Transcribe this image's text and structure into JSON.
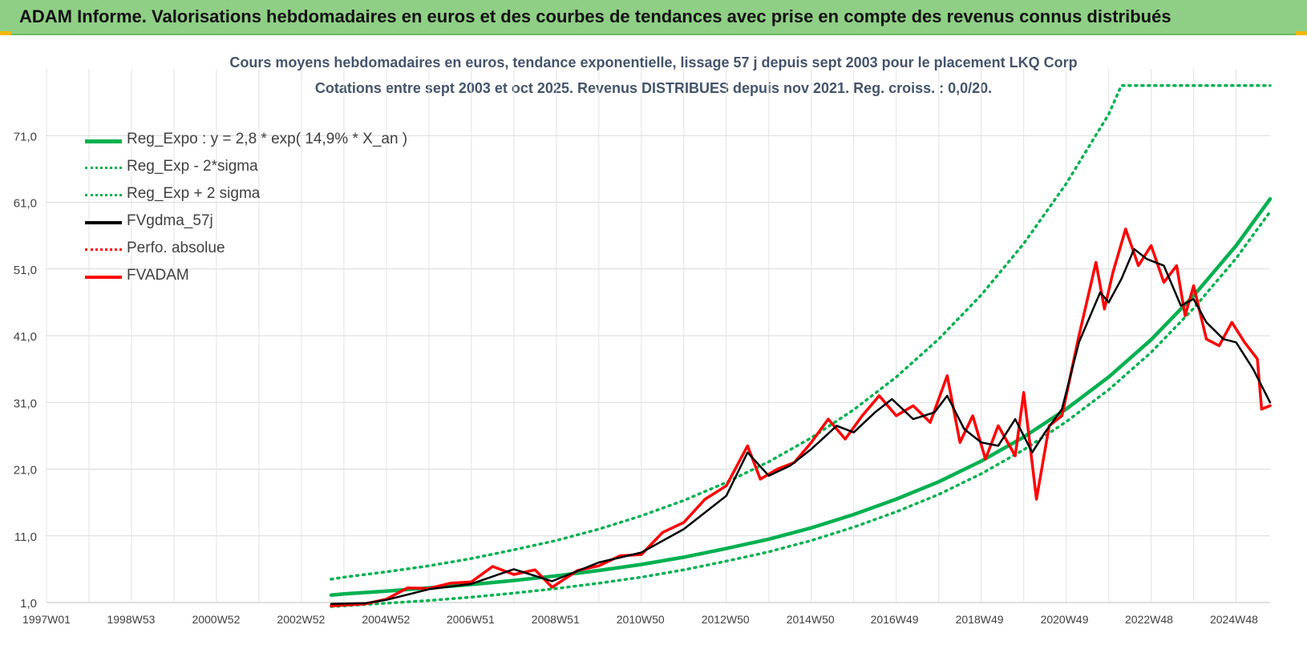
{
  "header": {
    "title": "ADAM Informe. Valorisations hebdomadaires en euros et des courbes de tendances avec prise en compte des revenus connus distribués"
  },
  "colors": {
    "header_bg": "#8fcf85",
    "regression": "#00b050",
    "smoothed": "#000000",
    "fvadam": "#ff0000",
    "text": "#44546a"
  },
  "chart_data": {
    "type": "line",
    "title_line1": "Cours moyens hebdomadaires en euros, tendance exponentielle, lissage 57 j depuis sept 2003 pour le placement LKQ Corp",
    "title_line2": "Cotations entre sept 2003 et oct 2025. Revenus DISTRIBUES depuis nov 2021. Reg. croiss. : 0,0/20.",
    "x_tick_labels": [
      "1997W01",
      "1998W53",
      "2000W52",
      "2002W52",
      "2004W52",
      "2006W51",
      "2008W51",
      "2010W50",
      "2012W50",
      "2014W50",
      "2016W49",
      "2018W49",
      "2020W49",
      "2022W48",
      "2024W48"
    ],
    "y_tick_labels": [
      "1,0",
      "11,0",
      "21,0",
      "31,0",
      "41,0",
      "51,0",
      "61,0",
      "71,0"
    ],
    "ylim": [
      1,
      81
    ],
    "xlim": [
      1997.0,
      2025.8
    ],
    "grid": true,
    "legend_position": "top-left",
    "series": [
      {
        "name": "Reg_Expo : y = 2,8 * exp( 14,9% *  X_an )",
        "style": "solid",
        "color": "#00b050",
        "points": [
          [
            2003.7,
            2.1
          ],
          [
            2004.0,
            2.3
          ],
          [
            2005.0,
            2.7
          ],
          [
            2006.0,
            3.2
          ],
          [
            2007.0,
            3.7
          ],
          [
            2008.0,
            4.3
          ],
          [
            2009.0,
            5.0
          ],
          [
            2010.0,
            5.8
          ],
          [
            2011.0,
            6.7
          ],
          [
            2012.0,
            7.8
          ],
          [
            2013.0,
            9.1
          ],
          [
            2014.0,
            10.5
          ],
          [
            2015.0,
            12.2
          ],
          [
            2016.0,
            14.2
          ],
          [
            2017.0,
            16.5
          ],
          [
            2018.0,
            19.1
          ],
          [
            2019.0,
            22.2
          ],
          [
            2020.0,
            25.8
          ],
          [
            2021.0,
            30.0
          ],
          [
            2022.0,
            34.8
          ],
          [
            2023.0,
            40.4
          ],
          [
            2024.0,
            47.0
          ],
          [
            2025.0,
            54.5
          ],
          [
            2025.8,
            61.5
          ]
        ]
      },
      {
        "name": "Reg_Exp - 2*sigma",
        "style": "dotted",
        "color": "#00b050",
        "points": [
          [
            2003.7,
            0.4
          ],
          [
            2004.0,
            0.5
          ],
          [
            2005.0,
            0.9
          ],
          [
            2006.0,
            1.3
          ],
          [
            2007.0,
            1.8
          ],
          [
            2008.0,
            2.4
          ],
          [
            2009.0,
            3.1
          ],
          [
            2010.0,
            3.9
          ],
          [
            2011.0,
            4.8
          ],
          [
            2012.0,
            5.9
          ],
          [
            2013.0,
            7.2
          ],
          [
            2014.0,
            8.6
          ],
          [
            2015.0,
            10.3
          ],
          [
            2016.0,
            12.3
          ],
          [
            2017.0,
            14.6
          ],
          [
            2018.0,
            17.2
          ],
          [
            2019.0,
            20.3
          ],
          [
            2020.0,
            23.9
          ],
          [
            2021.0,
            28.1
          ],
          [
            2022.0,
            32.9
          ],
          [
            2023.0,
            38.5
          ],
          [
            2024.0,
            45.1
          ],
          [
            2025.0,
            52.6
          ],
          [
            2025.8,
            59.6
          ]
        ]
      },
      {
        "name": "Reg_Exp + 2 sigma",
        "style": "dotted",
        "color": "#00b050",
        "points": [
          [
            2003.7,
            4.5
          ],
          [
            2004.0,
            4.8
          ],
          [
            2005.0,
            5.6
          ],
          [
            2006.0,
            6.5
          ],
          [
            2007.0,
            7.6
          ],
          [
            2008.0,
            8.9
          ],
          [
            2009.0,
            10.3
          ],
          [
            2010.0,
            12.0
          ],
          [
            2011.0,
            14.0
          ],
          [
            2012.0,
            16.3
          ],
          [
            2013.0,
            19.0
          ],
          [
            2014.0,
            22.1
          ],
          [
            2015.0,
            25.7
          ],
          [
            2016.0,
            29.9
          ],
          [
            2017.0,
            34.8
          ],
          [
            2018.0,
            40.5
          ],
          [
            2019.0,
            47.1
          ],
          [
            2020.0,
            54.8
          ],
          [
            2021.0,
            63.8
          ],
          [
            2022.0,
            74.2
          ],
          [
            2022.3,
            78.5
          ],
          [
            2025.8,
            78.5
          ]
        ]
      },
      {
        "name": "FVgdma_57j",
        "style": "solid",
        "color": "#000000",
        "points": [
          [
            2003.7,
            0.8
          ],
          [
            2004.5,
            0.9
          ],
          [
            2005.0,
            1.4
          ],
          [
            2006.0,
            3.0
          ],
          [
            2007.0,
            3.8
          ],
          [
            2008.0,
            6.0
          ],
          [
            2008.9,
            4.2
          ],
          [
            2010.0,
            7.0
          ],
          [
            2011.0,
            8.5
          ],
          [
            2012.0,
            12.0
          ],
          [
            2013.0,
            17.0
          ],
          [
            2013.5,
            23.5
          ],
          [
            2014.0,
            20.0
          ],
          [
            2014.5,
            21.5
          ],
          [
            2015.0,
            24.0
          ],
          [
            2015.6,
            27.5
          ],
          [
            2016.0,
            26.5
          ],
          [
            2016.5,
            29.5
          ],
          [
            2016.9,
            31.5
          ],
          [
            2017.4,
            28.5
          ],
          [
            2017.9,
            29.5
          ],
          [
            2018.2,
            32.0
          ],
          [
            2018.6,
            27.0
          ],
          [
            2019.0,
            25.0
          ],
          [
            2019.4,
            24.5
          ],
          [
            2019.8,
            28.5
          ],
          [
            2020.2,
            23.5
          ],
          [
            2020.5,
            26.5
          ],
          [
            2020.9,
            30.0
          ],
          [
            2021.3,
            40.0
          ],
          [
            2021.8,
            47.5
          ],
          [
            2022.0,
            46.0
          ],
          [
            2022.3,
            49.5
          ],
          [
            2022.6,
            54.0
          ],
          [
            2022.9,
            52.5
          ],
          [
            2023.3,
            51.5
          ],
          [
            2023.7,
            45.5
          ],
          [
            2024.0,
            46.5
          ],
          [
            2024.3,
            43.0
          ],
          [
            2024.7,
            40.5
          ],
          [
            2025.0,
            40.0
          ],
          [
            2025.4,
            36.0
          ],
          [
            2025.8,
            31.0
          ]
        ]
      },
      {
        "name": "Perfo. absolue",
        "style": "dotted",
        "color": "#ff0000",
        "points": []
      },
      {
        "name": "FVADAM",
        "style": "solid",
        "color": "#ff0000",
        "points": [
          [
            2003.7,
            0.5
          ],
          [
            2004.5,
            0.8
          ],
          [
            2005.0,
            1.5
          ],
          [
            2005.5,
            3.2
          ],
          [
            2006.0,
            3.1
          ],
          [
            2006.5,
            3.9
          ],
          [
            2007.0,
            4.1
          ],
          [
            2007.5,
            6.4
          ],
          [
            2008.0,
            5.2
          ],
          [
            2008.5,
            5.9
          ],
          [
            2008.9,
            3.3
          ],
          [
            2009.5,
            5.8
          ],
          [
            2010.0,
            6.5
          ],
          [
            2010.5,
            8.0
          ],
          [
            2011.0,
            8.2
          ],
          [
            2011.5,
            11.5
          ],
          [
            2012.0,
            13.0
          ],
          [
            2012.5,
            16.5
          ],
          [
            2013.0,
            18.5
          ],
          [
            2013.5,
            24.5
          ],
          [
            2013.8,
            19.5
          ],
          [
            2014.2,
            21.0
          ],
          [
            2014.6,
            22.0
          ],
          [
            2015.0,
            25.0
          ],
          [
            2015.4,
            28.5
          ],
          [
            2015.8,
            25.5
          ],
          [
            2016.2,
            29.0
          ],
          [
            2016.6,
            32.0
          ],
          [
            2017.0,
            29.0
          ],
          [
            2017.4,
            30.5
          ],
          [
            2017.8,
            28.0
          ],
          [
            2018.2,
            35.0
          ],
          [
            2018.5,
            25.0
          ],
          [
            2018.8,
            29.0
          ],
          [
            2019.1,
            22.5
          ],
          [
            2019.4,
            27.5
          ],
          [
            2019.8,
            23.0
          ],
          [
            2020.0,
            32.5
          ],
          [
            2020.3,
            16.5
          ],
          [
            2020.6,
            27.5
          ],
          [
            2020.9,
            29.0
          ],
          [
            2021.3,
            41.0
          ],
          [
            2021.7,
            52.0
          ],
          [
            2021.9,
            45.0
          ],
          [
            2022.1,
            50.5
          ],
          [
            2022.4,
            57.0
          ],
          [
            2022.7,
            51.5
          ],
          [
            2023.0,
            54.5
          ],
          [
            2023.3,
            49.0
          ],
          [
            2023.6,
            51.5
          ],
          [
            2023.8,
            44.0
          ],
          [
            2024.0,
            48.5
          ],
          [
            2024.3,
            40.5
          ],
          [
            2024.6,
            39.5
          ],
          [
            2024.9,
            43.0
          ],
          [
            2025.2,
            40.0
          ],
          [
            2025.5,
            37.5
          ],
          [
            2025.6,
            30.0
          ],
          [
            2025.8,
            30.5
          ]
        ]
      }
    ]
  }
}
